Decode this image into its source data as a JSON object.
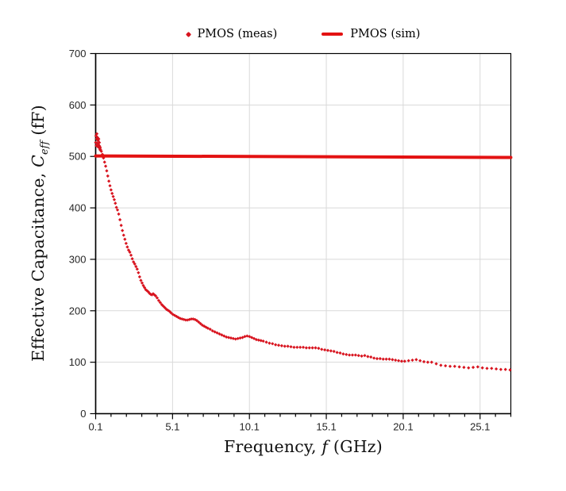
{
  "legend": {
    "items": [
      {
        "label": "PMOS (meas)",
        "marker": "dot"
      },
      {
        "label": "PMOS (sim)",
        "marker": "line"
      }
    ]
  },
  "axes": {
    "x_title_prefix": "Frequency, ",
    "x_title_symbol": "f",
    "x_title_suffix": " (GHz)",
    "y_title_prefix": "Effective Capacitance, ",
    "y_title_symbol": "C",
    "y_title_subscript": "eff",
    "y_title_suffix": " (fF)"
  },
  "colors": {
    "meas_red": "#d8141f",
    "sim_red": "#e31212",
    "grid": "#d9d9d9",
    "axis": "#000000",
    "tick_text": "#262626",
    "background": "#ffffff"
  },
  "chart_data": {
    "type": "scatter",
    "title": "",
    "xlabel": "Frequency, f (GHz)",
    "ylabel": "Effective Capacitance, C_eff (fF)",
    "xlim": [
      0.1,
      27.1
    ],
    "ylim": [
      0,
      700
    ],
    "x_major_ticks": [
      0.1,
      5.1,
      10.1,
      15.1,
      20.1,
      25.1
    ],
    "x_minor_step": 1,
    "y_ticks": [
      0,
      100,
      200,
      300,
      400,
      500,
      600,
      700
    ],
    "grid": "major",
    "legend_position": "top-center",
    "series": [
      {
        "name": "PMOS (meas)",
        "type": "scatter",
        "marker": "diamond",
        "color": "#d8141f",
        "points": [
          [
            0.1,
            527
          ],
          [
            0.12,
            540
          ],
          [
            0.14,
            521
          ],
          [
            0.16,
            534
          ],
          [
            0.18,
            544
          ],
          [
            0.2,
            526
          ],
          [
            0.22,
            537
          ],
          [
            0.24,
            519
          ],
          [
            0.26,
            531
          ],
          [
            0.28,
            523
          ],
          [
            0.3,
            534
          ],
          [
            0.32,
            517
          ],
          [
            0.34,
            527
          ],
          [
            0.36,
            520
          ],
          [
            0.38,
            513
          ],
          [
            0.4,
            517
          ],
          [
            0.42,
            513
          ],
          [
            0.47,
            510
          ],
          [
            0.54,
            504
          ],
          [
            0.61,
            497
          ],
          [
            0.68,
            489
          ],
          [
            0.75,
            481
          ],
          [
            0.82,
            472
          ],
          [
            0.89,
            462
          ],
          [
            0.96,
            452
          ],
          [
            1.03,
            443
          ],
          [
            1.1,
            435
          ],
          [
            1.17,
            428
          ],
          [
            1.24,
            422
          ],
          [
            1.31,
            416
          ],
          [
            1.38,
            409
          ],
          [
            1.45,
            401
          ],
          [
            1.52,
            396
          ],
          [
            1.6,
            388
          ],
          [
            1.68,
            377
          ],
          [
            1.76,
            366
          ],
          [
            1.84,
            356
          ],
          [
            1.92,
            347
          ],
          [
            2.0,
            339
          ],
          [
            2.08,
            331
          ],
          [
            2.16,
            324
          ],
          [
            2.24,
            318
          ],
          [
            2.32,
            314
          ],
          [
            2.4,
            308
          ],
          [
            2.48,
            301
          ],
          [
            2.56,
            295
          ],
          [
            2.64,
            291
          ],
          [
            2.72,
            286
          ],
          [
            2.8,
            281
          ],
          [
            2.88,
            274
          ],
          [
            2.96,
            266
          ],
          [
            3.04,
            259
          ],
          [
            3.12,
            254
          ],
          [
            3.2,
            249
          ],
          [
            3.28,
            245
          ],
          [
            3.36,
            241
          ],
          [
            3.44,
            239
          ],
          [
            3.52,
            237
          ],
          [
            3.6,
            234
          ],
          [
            3.68,
            232
          ],
          [
            3.76,
            231
          ],
          [
            3.84,
            233
          ],
          [
            3.92,
            231
          ],
          [
            4.0,
            229
          ],
          [
            4.1,
            225
          ],
          [
            4.2,
            220
          ],
          [
            4.3,
            216
          ],
          [
            4.4,
            212
          ],
          [
            4.5,
            209
          ],
          [
            4.6,
            206
          ],
          [
            4.7,
            203
          ],
          [
            4.8,
            201
          ],
          [
            4.9,
            199
          ],
          [
            5.0,
            196
          ],
          [
            5.12,
            193
          ],
          [
            5.24,
            191
          ],
          [
            5.36,
            189
          ],
          [
            5.48,
            187
          ],
          [
            5.6,
            185
          ],
          [
            5.72,
            184
          ],
          [
            5.84,
            183
          ],
          [
            5.96,
            182
          ],
          [
            6.08,
            182
          ],
          [
            6.2,
            183
          ],
          [
            6.32,
            184
          ],
          [
            6.44,
            184
          ],
          [
            6.56,
            183
          ],
          [
            6.68,
            181
          ],
          [
            6.8,
            178
          ],
          [
            6.92,
            175
          ],
          [
            7.04,
            172
          ],
          [
            7.16,
            170
          ],
          [
            7.28,
            168
          ],
          [
            7.4,
            166
          ],
          [
            7.55,
            164
          ],
          [
            7.7,
            161
          ],
          [
            7.85,
            159
          ],
          [
            8.0,
            157
          ],
          [
            8.15,
            155
          ],
          [
            8.3,
            153
          ],
          [
            8.45,
            151
          ],
          [
            8.6,
            149
          ],
          [
            8.75,
            148
          ],
          [
            8.9,
            147
          ],
          [
            9.05,
            146
          ],
          [
            9.2,
            145
          ],
          [
            9.35,
            146
          ],
          [
            9.5,
            147
          ],
          [
            9.65,
            148
          ],
          [
            9.8,
            150
          ],
          [
            9.95,
            151
          ],
          [
            10.1,
            150
          ],
          [
            10.25,
            148
          ],
          [
            10.4,
            146
          ],
          [
            10.55,
            144
          ],
          [
            10.7,
            143
          ],
          [
            10.85,
            142
          ],
          [
            11.0,
            141
          ],
          [
            11.2,
            139
          ],
          [
            11.4,
            137
          ],
          [
            11.6,
            136
          ],
          [
            11.8,
            134
          ],
          [
            12.0,
            133
          ],
          [
            12.2,
            132
          ],
          [
            12.4,
            131
          ],
          [
            12.6,
            131
          ],
          [
            12.8,
            130
          ],
          [
            13.0,
            129
          ],
          [
            13.2,
            129
          ],
          [
            13.4,
            129
          ],
          [
            13.6,
            129
          ],
          [
            13.8,
            128
          ],
          [
            14.0,
            128
          ],
          [
            14.2,
            128
          ],
          [
            14.4,
            128
          ],
          [
            14.6,
            127
          ],
          [
            14.8,
            125
          ],
          [
            15.0,
            124
          ],
          [
            15.2,
            123
          ],
          [
            15.4,
            122
          ],
          [
            15.6,
            121
          ],
          [
            15.8,
            119
          ],
          [
            16.0,
            118
          ],
          [
            16.2,
            116
          ],
          [
            16.4,
            115
          ],
          [
            16.6,
            114
          ],
          [
            16.8,
            114
          ],
          [
            17.0,
            114
          ],
          [
            17.2,
            113
          ],
          [
            17.4,
            112
          ],
          [
            17.6,
            113
          ],
          [
            17.8,
            111
          ],
          [
            18.0,
            110
          ],
          [
            18.2,
            108
          ],
          [
            18.4,
            107
          ],
          [
            18.6,
            107
          ],
          [
            18.8,
            106
          ],
          [
            19.0,
            106
          ],
          [
            19.2,
            106
          ],
          [
            19.4,
            105
          ],
          [
            19.6,
            104
          ],
          [
            19.8,
            103
          ],
          [
            20.0,
            102
          ],
          [
            20.2,
            102
          ],
          [
            20.45,
            103
          ],
          [
            20.7,
            104
          ],
          [
            20.95,
            105
          ],
          [
            21.2,
            103
          ],
          [
            21.45,
            101
          ],
          [
            21.7,
            100
          ],
          [
            21.95,
            100
          ],
          [
            22.25,
            97
          ],
          [
            22.55,
            94
          ],
          [
            22.85,
            93
          ],
          [
            23.15,
            92
          ],
          [
            23.45,
            92
          ],
          [
            23.75,
            91
          ],
          [
            24.05,
            90
          ],
          [
            24.35,
            89
          ],
          [
            24.65,
            90
          ],
          [
            24.95,
            91
          ],
          [
            25.25,
            89
          ],
          [
            25.55,
            88
          ],
          [
            25.85,
            88
          ],
          [
            26.15,
            87
          ],
          [
            26.45,
            86
          ],
          [
            26.75,
            86
          ],
          [
            27.05,
            85
          ]
        ]
      },
      {
        "name": "PMOS (sim)",
        "type": "line",
        "stroke_width": 4,
        "color": "#e31212",
        "points": [
          [
            0.1,
            501
          ],
          [
            27.1,
            498
          ]
        ]
      }
    ]
  }
}
